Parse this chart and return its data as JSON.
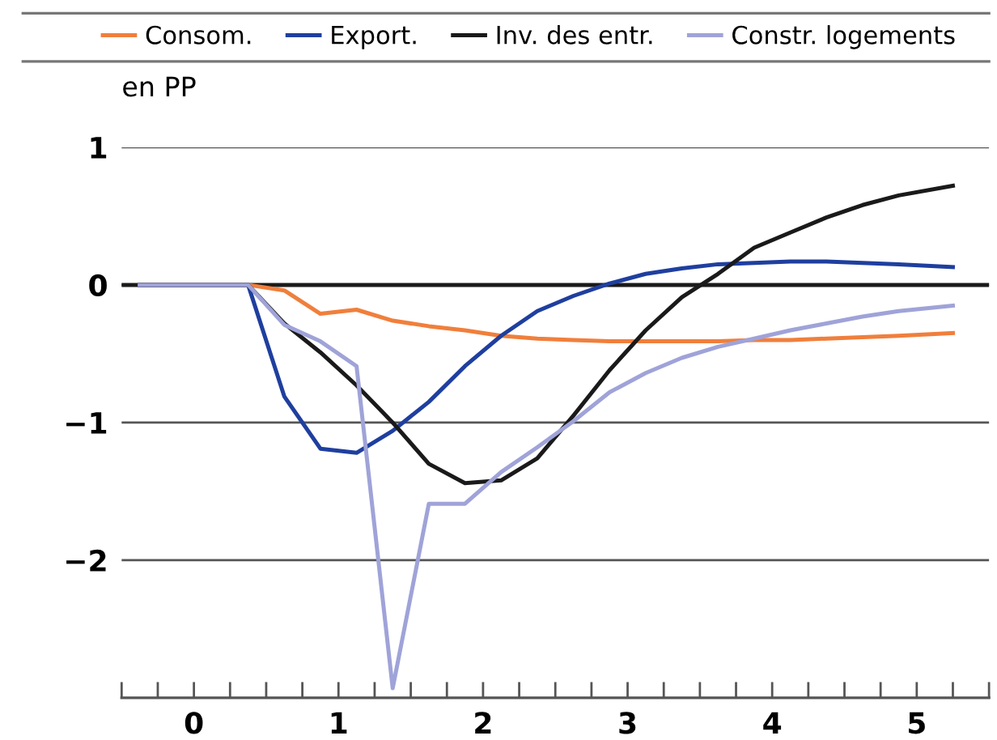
{
  "chart_data": {
    "type": "line",
    "ylabel": "en PP",
    "x": [
      -0.375,
      0.375,
      0.625,
      0.875,
      1.125,
      1.375,
      1.625,
      1.875,
      2.125,
      2.375,
      2.625,
      2.875,
      3.125,
      3.375,
      3.625,
      3.875,
      4.125,
      4.375,
      4.625,
      4.875,
      5.25
    ],
    "series": [
      {
        "name": "Consom.",
        "color": "#f07f3c",
        "values": [
          0,
          0,
          -0.04,
          -0.21,
          -0.18,
          -0.26,
          -0.3,
          -0.33,
          -0.37,
          -0.39,
          -0.4,
          -0.41,
          -0.41,
          -0.41,
          -0.41,
          -0.4,
          -0.4,
          -0.39,
          -0.38,
          -0.37,
          -0.35
        ]
      },
      {
        "name": "Export.",
        "color": "#1f3f9f",
        "values": [
          0,
          0,
          -0.81,
          -1.19,
          -1.22,
          -1.06,
          -0.85,
          -0.59,
          -0.37,
          -0.19,
          -0.08,
          0.01,
          0.08,
          0.12,
          0.15,
          0.16,
          0.17,
          0.17,
          0.16,
          0.15,
          0.13
        ]
      },
      {
        "name": "Inv. des entr.",
        "color": "#1a1a1a",
        "values": [
          0,
          0,
          -0.28,
          -0.49,
          -0.73,
          -1.0,
          -1.3,
          -1.44,
          -1.42,
          -1.26,
          -0.95,
          -0.62,
          -0.33,
          -0.09,
          0.08,
          0.27,
          0.38,
          0.49,
          0.58,
          0.65,
          0.72
        ]
      },
      {
        "name": "Constr. logements",
        "color": "#9fa3d8",
        "values": [
          0,
          0,
          -0.29,
          -0.41,
          -0.59,
          -2.93,
          -1.59,
          -1.59,
          -1.36,
          -1.18,
          -0.99,
          -0.78,
          -0.64,
          -0.53,
          -0.45,
          -0.39,
          -0.33,
          -0.28,
          -0.23,
          -0.19,
          -0.15
        ]
      }
    ],
    "xlim": [
      -0.5,
      5.5
    ],
    "xticks": [
      {
        "value": -0.5,
        "label": null
      },
      {
        "value": -0.25,
        "label": null
      },
      0,
      {
        "value": 0.25,
        "label": null
      },
      {
        "value": 0.5,
        "label": null
      },
      {
        "value": 0.75,
        "label": null
      },
      1,
      {
        "value": 1.25,
        "label": null
      },
      {
        "value": 1.5,
        "label": null
      },
      {
        "value": 1.75,
        "label": null
      },
      2,
      {
        "value": 2.25,
        "label": null
      },
      {
        "value": 2.5,
        "label": null
      },
      {
        "value": 2.75,
        "label": null
      },
      3,
      {
        "value": 3.25,
        "label": null
      },
      {
        "value": 3.5,
        "label": null
      },
      {
        "value": 3.75,
        "label": null
      },
      4,
      {
        "value": 4.25,
        "label": null
      },
      {
        "value": 4.5,
        "label": null
      },
      {
        "value": 4.75,
        "label": null
      },
      5,
      {
        "value": 5.25,
        "label": null
      },
      {
        "value": 5.5,
        "label": null
      }
    ],
    "ylim": [
      -3,
      1
    ],
    "yticks": [
      1,
      0,
      {
        "value": -1,
        "label": "−1"
      },
      {
        "value": -2,
        "label": "−2"
      }
    ],
    "ref_lines": [
      {
        "axis": "y",
        "value": 0,
        "color": "#1a1a1a"
      }
    ],
    "grid": "y",
    "legend": "top",
    "marker": "none",
    "line_style": "solid"
  }
}
